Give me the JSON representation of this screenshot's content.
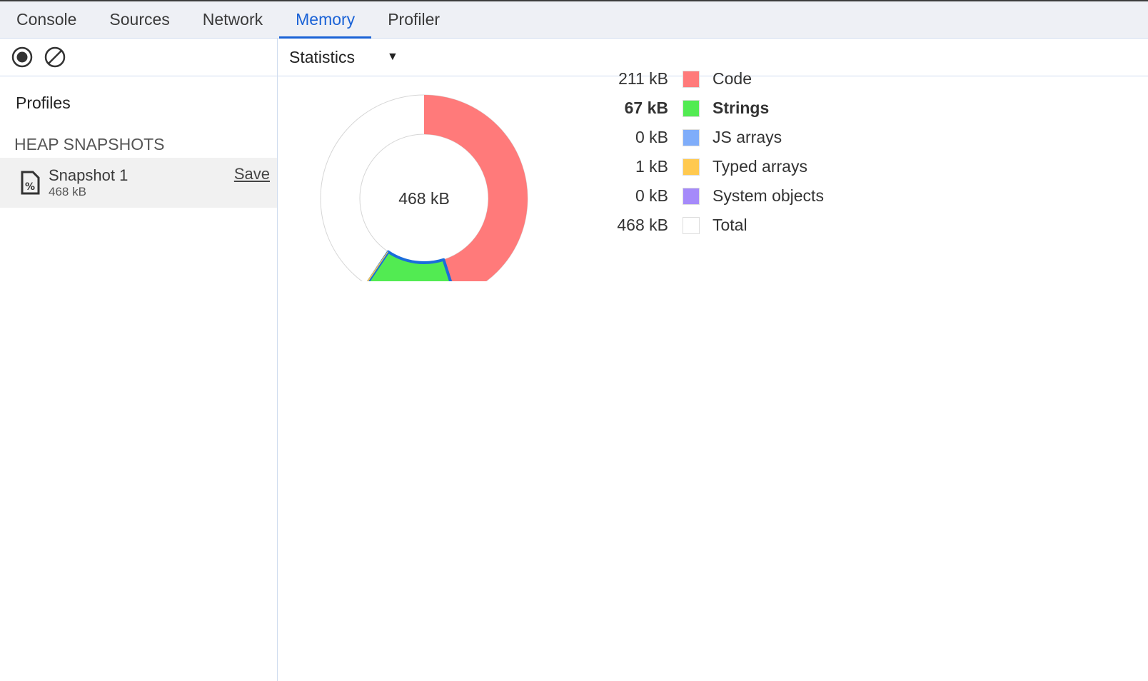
{
  "tabs": [
    "Console",
    "Sources",
    "Network",
    "Memory",
    "Profiler"
  ],
  "active_tab": "Memory",
  "sidebar": {
    "profiles_label": "Profiles",
    "section": "HEAP SNAPSHOTS",
    "snapshot": {
      "name": "Snapshot 1",
      "size": "468 kB",
      "save": "Save"
    }
  },
  "view_select": "Statistics",
  "chart_data": {
    "type": "pie",
    "center_label": "468 kB",
    "total": 468,
    "unit": "kB",
    "series": [
      {
        "name": "Code",
        "value": 211,
        "label": "211 kB",
        "color": "#ff7a7a"
      },
      {
        "name": "Strings",
        "value": 67,
        "label": "67 kB",
        "color": "#52eb52",
        "highlighted": true
      },
      {
        "name": "JS arrays",
        "value": 0,
        "label": "0 kB",
        "color": "#7fadfa"
      },
      {
        "name": "Typed arrays",
        "value": 1,
        "label": "1 kB",
        "color": "#ffc94f"
      },
      {
        "name": "System objects",
        "value": 0,
        "label": "0 kB",
        "color": "#a58afa"
      },
      {
        "name": "Total",
        "value": 468,
        "label": "468 kB",
        "color": "#ffffff"
      }
    ],
    "highlight_color": "#1a6ddb"
  }
}
